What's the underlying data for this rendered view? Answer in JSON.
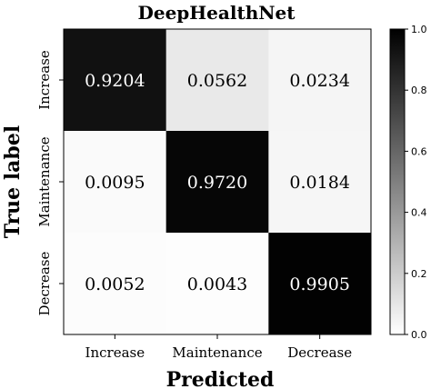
{
  "chart_data": {
    "type": "heatmap",
    "title": "DeepHealthNet",
    "xlabel": "Predicted",
    "ylabel": "True label",
    "x_categories": [
      "Increase",
      "Maintenance",
      "Decrease"
    ],
    "y_categories": [
      "Increase",
      "Maintenance",
      "Decrease"
    ],
    "values": [
      [
        0.9204,
        0.0562,
        0.0234
      ],
      [
        0.0095,
        0.972,
        0.0184
      ],
      [
        0.0052,
        0.0043,
        0.9905
      ]
    ],
    "cell_labels": [
      [
        "0.9204",
        "0.0562",
        "0.0234"
      ],
      [
        "0.0095",
        "0.9720",
        "0.0184"
      ],
      [
        "0.0052",
        "0.0043",
        "0.9905"
      ]
    ],
    "colorbar": {
      "range": [
        0,
        1
      ],
      "ticks": [
        "0.0",
        "0.2",
        "0.4",
        "0.6",
        "0.8",
        "1.0"
      ],
      "colormap": "Greys"
    },
    "grid": false
  }
}
